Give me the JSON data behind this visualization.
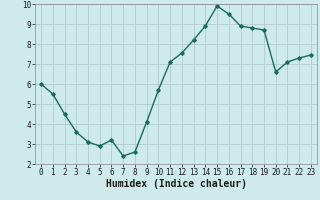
{
  "x": [
    0,
    1,
    2,
    3,
    4,
    5,
    6,
    7,
    8,
    9,
    10,
    11,
    12,
    13,
    14,
    15,
    16,
    17,
    18,
    19,
    20,
    21,
    22,
    23
  ],
  "y": [
    6.0,
    5.5,
    4.5,
    3.6,
    3.1,
    2.9,
    3.2,
    2.4,
    2.6,
    4.1,
    5.7,
    7.1,
    7.55,
    8.2,
    8.9,
    9.9,
    9.5,
    8.9,
    8.8,
    8.7,
    6.6,
    7.1,
    7.3,
    7.45
  ],
  "xlabel": "Humidex (Indice chaleur)",
  "line_color": "#1a6b5a",
  "marker": "D",
  "marker_size": 1.8,
  "linewidth": 1.0,
  "bg_color": "#ceeaea",
  "grid_color": "#b0cccc",
  "xlim": [
    -0.5,
    23.5
  ],
  "ylim": [
    2,
    10
  ],
  "yticks": [
    2,
    3,
    4,
    5,
    6,
    7,
    8,
    9,
    10
  ],
  "xticks": [
    0,
    1,
    2,
    3,
    4,
    5,
    6,
    7,
    8,
    9,
    10,
    11,
    12,
    13,
    14,
    15,
    16,
    17,
    18,
    19,
    20,
    21,
    22,
    23
  ],
  "tick_fontsize": 5.5,
  "xlabel_fontsize": 7.0,
  "xlabel_fontweight": "bold"
}
